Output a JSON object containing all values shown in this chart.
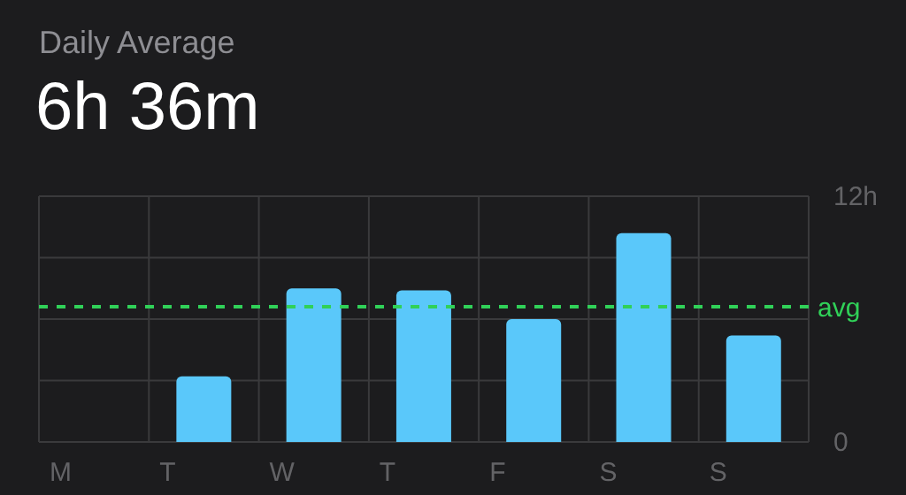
{
  "chart_data": {
    "type": "bar",
    "title": "Daily Average",
    "subtitle": "6h 36m",
    "categories": [
      "M",
      "T",
      "W",
      "T",
      "F",
      "S",
      "S"
    ],
    "values": [
      0,
      3.2,
      7.5,
      7.4,
      6.0,
      10.2,
      5.2
    ],
    "color": "#5ac8fa",
    "ylim": [
      0,
      12
    ],
    "yticks": [
      {
        "value": 0,
        "label": "0"
      },
      {
        "value": 3,
        "label": null
      },
      {
        "value": 6,
        "label": null
      },
      {
        "value": 9,
        "label": null
      },
      {
        "value": 12,
        "label": "12h"
      }
    ],
    "grid": true,
    "ref_lines": [
      {
        "axis": "y",
        "value": 6.6,
        "label": "avg",
        "color": "#30d158",
        "line_style": "dashed"
      }
    ]
  }
}
